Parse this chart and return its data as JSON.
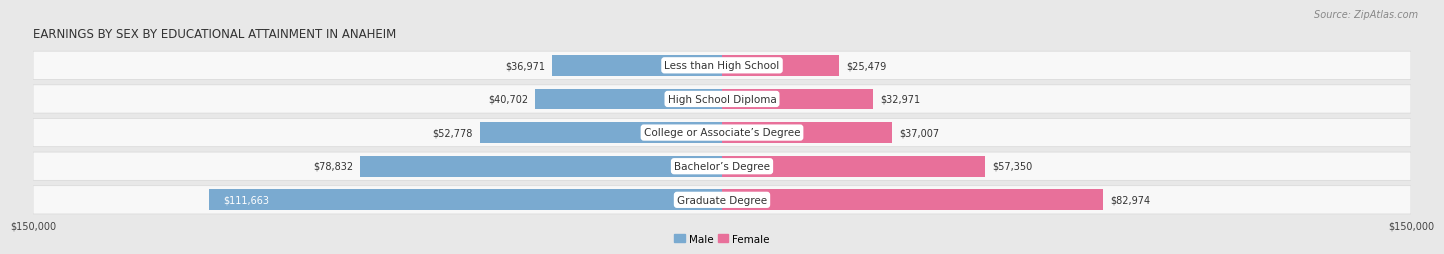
{
  "title": "EARNINGS BY SEX BY EDUCATIONAL ATTAINMENT IN ANAHEIM",
  "source": "Source: ZipAtlas.com",
  "categories": [
    "Less than High School",
    "High School Diploma",
    "College or Associate’s Degree",
    "Bachelor’s Degree",
    "Graduate Degree"
  ],
  "male_values": [
    36971,
    40702,
    52778,
    78832,
    111663
  ],
  "female_values": [
    25479,
    32971,
    37007,
    57350,
    82974
  ],
  "male_color": "#7aaad0",
  "female_color": "#e8709a",
  "male_label": "Male",
  "female_label": "Female",
  "xlim": 150000,
  "x_tick_labels": [
    "$150,000",
    "$150,000"
  ],
  "background_color": "#e8e8e8",
  "row_bg_color": "#f8f8f8",
  "row_bg_edge_color": "#d8d8d8",
  "title_fontsize": 8.5,
  "source_fontsize": 7,
  "label_fontsize": 7.5,
  "value_fontsize": 7,
  "legend_fontsize": 7.5
}
